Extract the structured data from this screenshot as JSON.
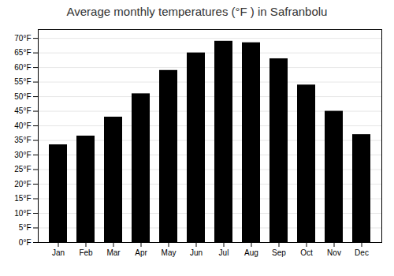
{
  "chart_data": {
    "type": "bar",
    "title": "Average monthly temperatures (°F ) in Safranbolu",
    "categories": [
      "Jan",
      "Feb",
      "Mar",
      "Apr",
      "May",
      "Jun",
      "Jul",
      "Aug",
      "Sep",
      "Oct",
      "Nov",
      "Dec"
    ],
    "values": [
      33.5,
      36.5,
      43.0,
      51.0,
      59.0,
      65.0,
      69.0,
      68.5,
      63.0,
      54.0,
      45.0,
      37.0
    ],
    "ylim": [
      0,
      73
    ],
    "yticks": [
      {
        "value": 0,
        "label": "0°F"
      },
      {
        "value": 5,
        "label": "5°F"
      },
      {
        "value": 10,
        "label": "10°F"
      },
      {
        "value": 15,
        "label": "15°F"
      },
      {
        "value": 20,
        "label": "20°F"
      },
      {
        "value": 25,
        "label": "25°F"
      },
      {
        "value": 30,
        "label": "30°F"
      },
      {
        "value": 35,
        "label": "35°F"
      },
      {
        "value": 40,
        "label": "40°F"
      },
      {
        "value": 45,
        "label": "45°F"
      },
      {
        "value": 50,
        "label": "50°F"
      },
      {
        "value": 55,
        "label": "55°F"
      },
      {
        "value": 60,
        "label": "60°F"
      },
      {
        "value": 65,
        "label": "65°F"
      },
      {
        "value": 70,
        "label": "70°F"
      }
    ],
    "grid": true
  }
}
